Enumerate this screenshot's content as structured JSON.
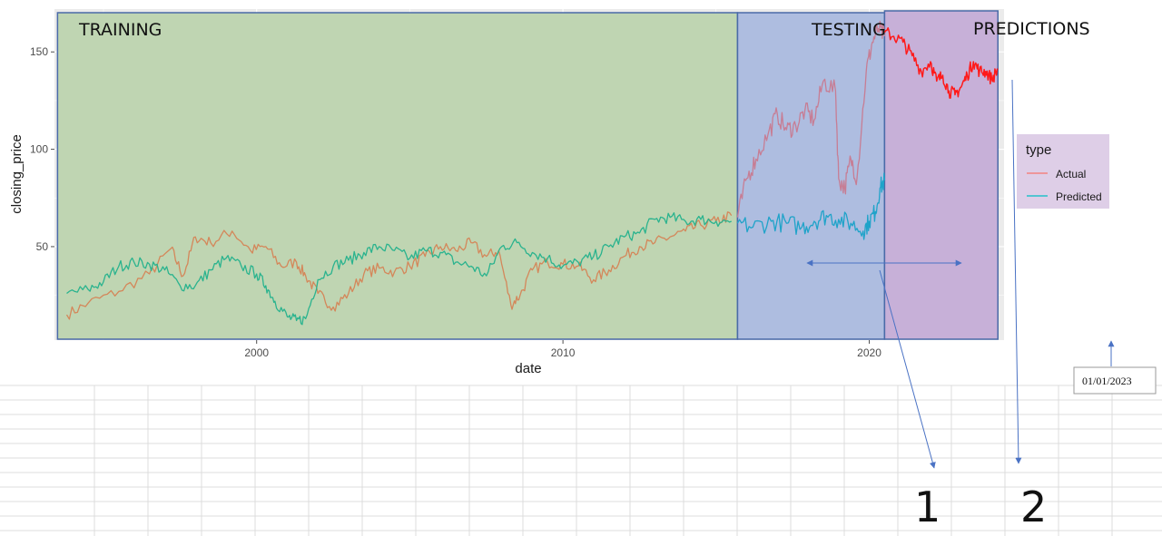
{
  "chart_data": {
    "type": "line",
    "xlabel": "date",
    "ylabel": "closing_price",
    "xlim": [
      1993.4,
      2024.4
    ],
    "ylim": [
      2,
      172
    ],
    "x_ticks": [
      2000,
      2010,
      2020
    ],
    "x_tick_labels": [
      "2000",
      "2010",
      "2020"
    ],
    "y_ticks": [
      50,
      100,
      150
    ],
    "y_tick_labels": [
      "50",
      "100",
      "150"
    ],
    "grid": true,
    "regions": [
      {
        "label": "TRAINING",
        "x_start": 1993.5,
        "x_end": 2015.7,
        "color": "#bfd5b2"
      },
      {
        "label": "TESTING",
        "x_start": 2015.7,
        "x_end": 2020.5,
        "color": "#aebde0"
      },
      {
        "label": "PREDICTIONS",
        "x_start": 2020.5,
        "x_end": 2024.2,
        "color": "#c7b0d8"
      }
    ],
    "legend": {
      "title": "type",
      "position": "right",
      "entries": [
        {
          "label": "Actual",
          "color": "#f8766d"
        },
        {
          "label": "Predicted",
          "color": "#00bfc4"
        }
      ]
    },
    "series": [
      {
        "name": "Actual",
        "segment": "training",
        "color": "#d4875a",
        "x": [
          1993.8,
          1994.5,
          1995.5,
          1996.5,
          1997.2,
          1997.6,
          1998.0,
          1998.5,
          1999.2,
          1999.8,
          2000.3,
          2000.8,
          2001.3,
          2001.6,
          2002.0,
          2002.5,
          2003.0,
          2003.5,
          2004.0,
          2004.5,
          2005.0,
          2005.5,
          2006.0,
          2006.5,
          2007.0,
          2007.5,
          2007.9,
          2008.3,
          2008.6,
          2009.0,
          2009.5,
          2010.0,
          2010.5,
          2011.0,
          2011.5,
          2012.0,
          2012.5,
          2013.0,
          2013.5,
          2014.0,
          2014.5,
          2015.0,
          2015.5
        ],
        "y": [
          15,
          21,
          27,
          36,
          49,
          35,
          55,
          52,
          58,
          48,
          50,
          40,
          42,
          35,
          26,
          19,
          26,
          36,
          39,
          37,
          40,
          45,
          50,
          48,
          52,
          45,
          48,
          20,
          25,
          38,
          42,
          41,
          40,
          33,
          38,
          45,
          50,
          52,
          55,
          58,
          61,
          63,
          66
        ]
      },
      {
        "name": "Predicted",
        "segment": "training",
        "color": "#2ab38e",
        "x": [
          1993.8,
          1994.5,
          1995.0,
          1995.5,
          1996.0,
          1996.5,
          1997.0,
          1997.5,
          1998.0,
          1998.5,
          1999.0,
          1999.5,
          2000.0,
          2000.3,
          2000.6,
          2001.0,
          2001.3,
          2001.6,
          2002.0,
          2002.5,
          2003.0,
          2003.5,
          2004.0,
          2004.5,
          2005.0,
          2005.5,
          2006.0,
          2006.5,
          2007.0,
          2007.5,
          2008.0,
          2008.5,
          2009.0,
          2009.5,
          2010.0,
          2010.5,
          2011.0,
          2011.5,
          2012.0,
          2012.5,
          2013.0,
          2013.5,
          2014.0,
          2014.5,
          2015.0,
          2015.5
        ],
        "y": [
          26,
          28,
          32,
          40,
          42,
          41,
          38,
          30,
          30,
          38,
          44,
          40,
          36,
          30,
          22,
          14,
          12,
          13,
          33,
          40,
          43,
          47,
          50,
          48,
          44,
          48,
          47,
          42,
          40,
          35,
          50,
          52,
          47,
          44,
          40,
          42,
          45,
          50,
          55,
          57,
          64,
          65,
          63,
          64,
          63,
          63
        ]
      },
      {
        "name": "Actual",
        "segment": "testing",
        "color": "#c77d94",
        "x": [
          2015.7,
          2016.0,
          2016.3,
          2016.7,
          2017.0,
          2017.3,
          2017.6,
          2017.9,
          2018.2,
          2018.5,
          2018.9,
          2019.0,
          2019.2,
          2019.4,
          2019.6,
          2019.9,
          2020.1,
          2020.3,
          2020.5
        ],
        "y": [
          65,
          85,
          95,
          108,
          118,
          110,
          112,
          120,
          115,
          135,
          130,
          85,
          80,
          95,
          85,
          140,
          155,
          162,
          158
        ]
      },
      {
        "name": "Predicted",
        "segment": "testing",
        "color": "#1fa3c9",
        "x": [
          2015.7,
          2016.2,
          2016.8,
          2017.3,
          2017.8,
          2018.2,
          2018.6,
          2019.0,
          2019.4,
          2019.8,
          2020.0,
          2020.2,
          2020.35,
          2020.5
        ],
        "y": [
          62,
          60,
          63,
          62,
          60,
          63,
          66,
          64,
          62,
          58,
          63,
          68,
          80,
          84
        ]
      },
      {
        "name": "Actual",
        "segment": "predictions",
        "color": "#ff1a1a",
        "x": [
          2020.5,
          2020.8,
          2021.1,
          2021.4,
          2021.7,
          2022.0,
          2022.2,
          2022.4,
          2022.6,
          2022.8,
          2023.0,
          2023.2,
          2023.4,
          2023.6,
          2023.8,
          2024.0,
          2024.2
        ],
        "y": [
          160,
          158,
          155,
          148,
          140,
          145,
          135,
          138,
          130,
          128,
          132,
          138,
          145,
          140,
          140,
          136,
          141
        ]
      }
    ],
    "annotations": [
      {
        "text": "1",
        "kind": "callout-number"
      },
      {
        "text": "2",
        "kind": "callout-number"
      },
      {
        "text": "01/01/2023",
        "kind": "date-box"
      }
    ]
  },
  "labels": {
    "training": "TRAINING",
    "testing": "TESTING",
    "predictions": "PREDICTIONS",
    "legend_title": "type",
    "legend_actual": "Actual",
    "legend_predicted": "Predicted",
    "callout_1": "1",
    "callout_2": "2",
    "date_box": "01/01/2023",
    "xlabel": "date",
    "ylabel": "closing_price"
  },
  "colors": {
    "panel_bg": "#ebebeb",
    "box_border": "#4a6aa8",
    "arrow": "#4a72c4"
  }
}
